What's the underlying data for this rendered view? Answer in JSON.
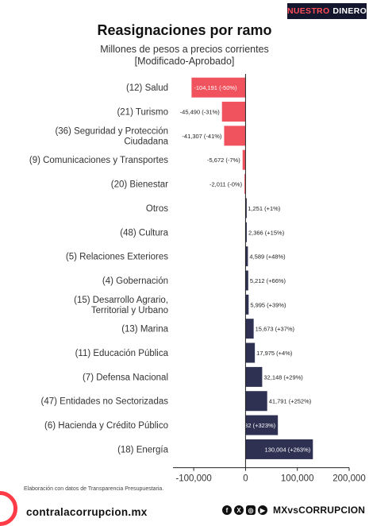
{
  "brand": {
    "part1": "NUESTRO",
    "part2": "DINERO"
  },
  "title": "Reasignaciones por ramo",
  "subtitle_line1": "Millones de pesos a precios corrientes",
  "subtitle_line2": "[Modificado-Aprobado]",
  "source": "Elaboración con datos de Transparencia Presupuestaria.",
  "footer": {
    "url": "contralacorrupcion.mx",
    "handle": "MXvsCORRUPCION"
  },
  "colors": {
    "negative": "#f0535d",
    "positive": "#2e3152",
    "axis": "#222222",
    "badge": "#14172e"
  },
  "chart_data": {
    "type": "bar",
    "orientation": "horizontal",
    "title": "Reasignaciones por ramo",
    "subtitle": "Millones de pesos a precios corrientes [Modificado-Aprobado]",
    "xlim": [
      -140000,
      200000
    ],
    "xticks": [
      -100000,
      0,
      100000,
      200000
    ],
    "xtick_labels": [
      "-100,000",
      "0",
      "100,000",
      "200,000"
    ],
    "grid": false,
    "categories": [
      [
        "(12) Salud"
      ],
      [
        "(21) Turismo"
      ],
      [
        "(36) Seguridad y Protección",
        "Ciudadana"
      ],
      [
        "(9) Comunicaciones y Transportes"
      ],
      [
        "(20) Bienestar"
      ],
      [
        "Otros"
      ],
      [
        "(48) Cultura"
      ],
      [
        "(5) Relaciones Exteriores"
      ],
      [
        "(4) Gobernación"
      ],
      [
        "(15) Desarrollo Agrario,",
        "Territorial y Urbano"
      ],
      [
        "(13) Marina"
      ],
      [
        "(11) Educación Pública"
      ],
      [
        "(7) Defensa Nacional"
      ],
      [
        "(47) Entidades no Sectorizadas"
      ],
      [
        "(6) Hacienda y Crédito Público"
      ],
      [
        "(18) Energía"
      ]
    ],
    "values": [
      -104191,
      -45490,
      -41307,
      -5672,
      -2011,
      1251,
      2366,
      4589,
      5212,
      5995,
      15673,
      17975,
      32148,
      41791,
      62432,
      130004
    ],
    "data_labels": [
      "-104,191 (-50%)",
      "-45,490 (-31%)",
      "-41,307 (-41%)",
      "-5,672 (-7%)",
      "-2,011 (-0%)",
      "1,251 (+1%)",
      "2,366 (+15%)",
      "4,589 (+48%)",
      "5,212 (+66%)",
      "5,995 (+39%)",
      "15,673 (+37%)",
      "17,975 (+4%)",
      "32,148 (+29%)",
      "41,791 (+252%)",
      "62,432 (+323%)",
      "130,004 (+263%)"
    ]
  }
}
